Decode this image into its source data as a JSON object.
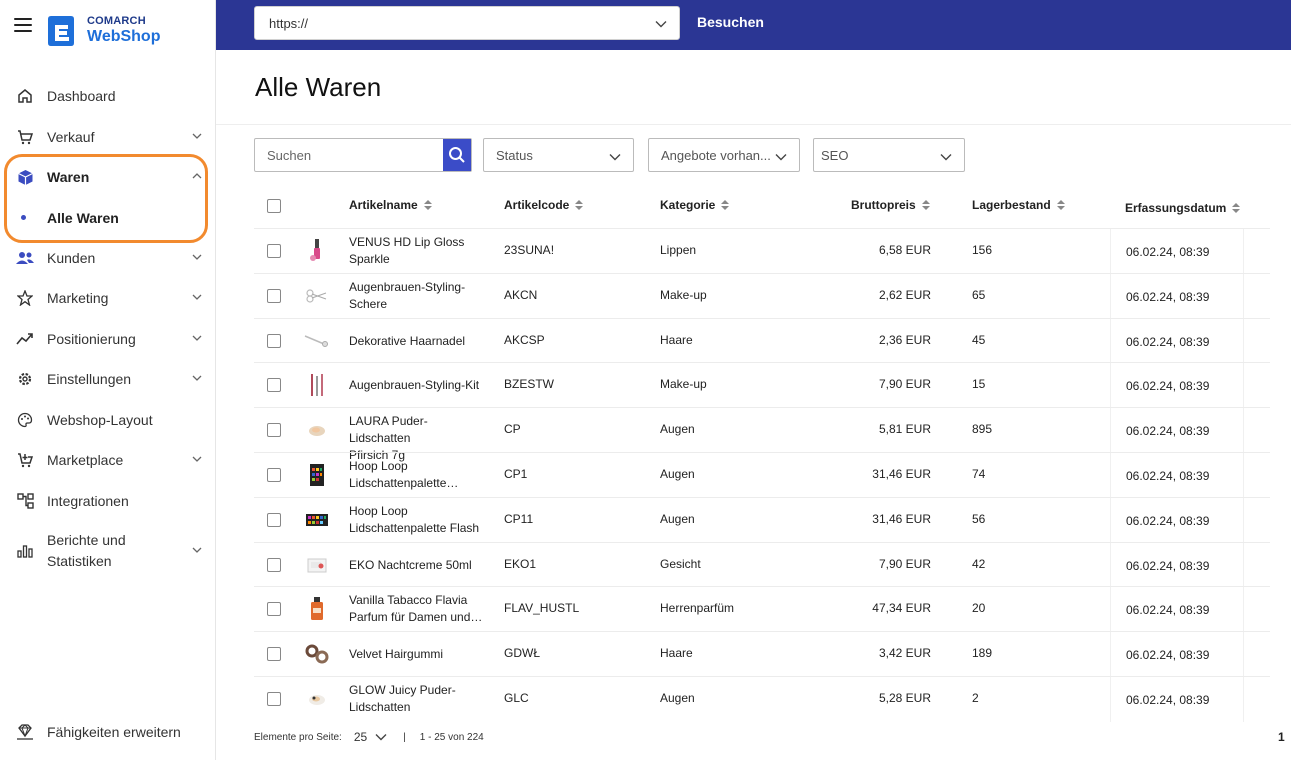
{
  "logo": {
    "line1": "COMARCH",
    "line2": "WebShop"
  },
  "sidebar": {
    "items": [
      {
        "label": "Dashboard",
        "icon": "home-icon",
        "has_chevron": false
      },
      {
        "label": "Verkauf",
        "icon": "cart-icon",
        "has_chevron": true
      },
      {
        "label": "Waren",
        "icon": "box-icon",
        "has_chevron": true,
        "expanded": true
      },
      {
        "label": "Kunden",
        "icon": "users-icon",
        "has_chevron": true
      },
      {
        "label": "Marketing",
        "icon": "star-icon",
        "has_chevron": true
      },
      {
        "label": "Positionierung",
        "icon": "trend-icon",
        "has_chevron": true
      },
      {
        "label": "Einstellungen",
        "icon": "gear-icon",
        "has_chevron": true
      },
      {
        "label": "Webshop-Layout",
        "icon": "palette-icon",
        "has_chevron": false
      },
      {
        "label": "Marketplace",
        "icon": "marketplace-icon",
        "has_chevron": true
      },
      {
        "label": "Integrationen",
        "icon": "integration-icon",
        "has_chevron": false
      },
      {
        "label": "Berichte und Statistiken",
        "label_line1": "Berichte und",
        "label_line2": "Statistiken",
        "icon": "chart-icon",
        "has_chevron": true
      }
    ],
    "sub_item": "Alle Waren",
    "bottom_item": "Fähigkeiten erweitern"
  },
  "topbar": {
    "url": "https://",
    "visit_label": "Besuchen"
  },
  "page": {
    "title": "Alle Waren"
  },
  "filters": {
    "search_placeholder": "Suchen",
    "status": "Status",
    "offers": "Angebote vorhan...",
    "seo": "SEO"
  },
  "table": {
    "headers": {
      "name": "Artikelname",
      "code": "Artikelcode",
      "category": "Kategorie",
      "price": "Bruttopreis",
      "stock": "Lagerbestand",
      "date": "Erfassungsdatum"
    },
    "rows": [
      {
        "name1": "VENUS HD Lip Gloss",
        "name2": "Sparkle",
        "code": "23SUNA!",
        "category": "Lippen",
        "price": "6,58 EUR",
        "stock": "156",
        "date": "06.02.24, 08:39",
        "thumb": "lipgloss"
      },
      {
        "name1": "Augenbrauen-Styling-",
        "name2": "Schere",
        "code": "AKCN",
        "category": "Make-up",
        "price": "2,62 EUR",
        "stock": "65",
        "date": "06.02.24, 08:39",
        "thumb": "scissors"
      },
      {
        "name1": "Dekorative Haarnadel",
        "name2": "",
        "code": "AKCSP",
        "category": "Haare",
        "price": "2,36 EUR",
        "stock": "45",
        "date": "06.02.24, 08:39",
        "thumb": "pin"
      },
      {
        "name1": "Augenbrauen-Styling-Kit",
        "name2": "",
        "code": "BZESTW",
        "category": "Make-up",
        "price": "7,90 EUR",
        "stock": "15",
        "date": "06.02.24, 08:39",
        "thumb": "kit"
      },
      {
        "name1": "LAURA Puder-Lidschatten",
        "name2": "Pfirsich 7g",
        "code": "CP",
        "category": "Augen",
        "price": "5,81 EUR",
        "stock": "895",
        "date": "06.02.24, 08:39",
        "thumb": "powder"
      },
      {
        "name1": "Hoop Loop",
        "name2": "Lidschattenpalette…",
        "code": "CP1",
        "category": "Augen",
        "price": "31,46 EUR",
        "stock": "74",
        "date": "06.02.24, 08:39",
        "thumb": "palette"
      },
      {
        "name1": "Hoop Loop",
        "name2": "Lidschattenpalette Flash",
        "code": "CP11",
        "category": "Augen",
        "price": "31,46 EUR",
        "stock": "56",
        "date": "06.02.24, 08:39",
        "thumb": "palette2"
      },
      {
        "name1": "EKO Nachtcreme 50ml",
        "name2": "",
        "code": "EKO1",
        "category": "Gesicht",
        "price": "7,90 EUR",
        "stock": "42",
        "date": "06.02.24, 08:39",
        "thumb": "cream"
      },
      {
        "name1": "Vanilla Tabacco Flavia",
        "name2": "Parfum für Damen und…",
        "code": "FLAV_HUSTL",
        "category": "Herrenparfüm",
        "price": "47,34 EUR",
        "stock": "20",
        "date": "06.02.24, 08:39",
        "thumb": "perfume"
      },
      {
        "name1": "Velvet Hairgummi",
        "name2": "",
        "code": "GDWŁ",
        "category": "Haare",
        "price": "3,42 EUR",
        "stock": "189",
        "date": "06.02.24, 08:39",
        "thumb": "scrunchie"
      },
      {
        "name1": "GLOW Juicy Puder-",
        "name2": "Lidschatten",
        "code": "GLC",
        "category": "Augen",
        "price": "5,28 EUR",
        "stock": "2",
        "date": "06.02.24, 08:39",
        "thumb": "glow"
      }
    ]
  },
  "footer": {
    "per_page_label": "Elemente pro Seite:",
    "per_page": "25",
    "range": "1 - 25 von 224",
    "page": "1"
  }
}
